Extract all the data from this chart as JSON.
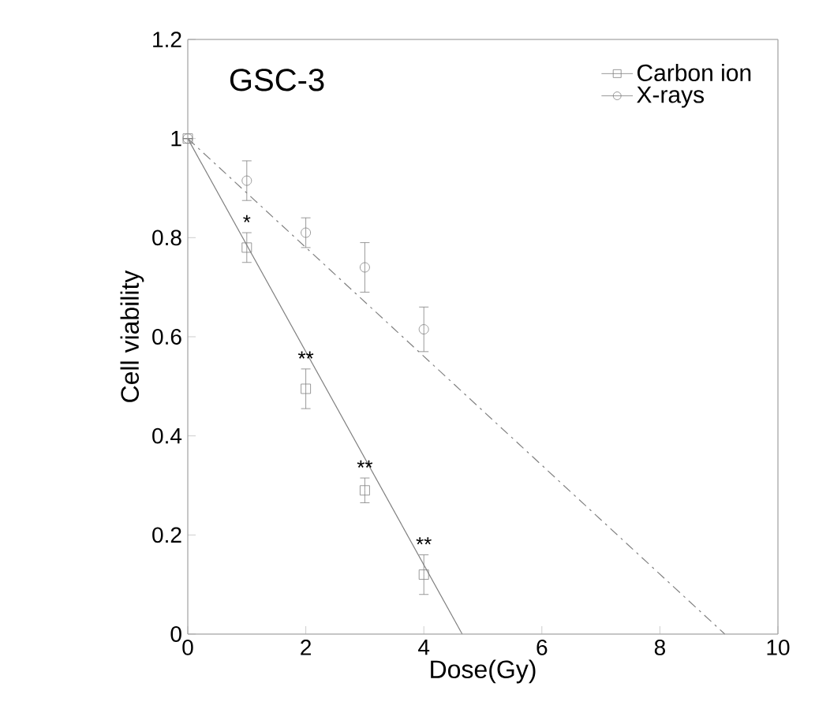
{
  "chart_data": {
    "type": "scatter",
    "title": "GSC-3",
    "xlabel": "Dose(Gy)",
    "ylabel": "Cell viability",
    "xlim": [
      0,
      10
    ],
    "xticks": [
      0,
      2,
      4,
      6,
      8,
      10
    ],
    "ylim": [
      0,
      1.2
    ],
    "yticks": [
      0,
      0.2,
      0.4,
      0.6,
      0.8,
      1,
      1.2
    ],
    "legend": "top right",
    "grid": false,
    "series": [
      {
        "name": "Carbon ion",
        "marker": "square",
        "color": "#808080",
        "x": [
          0,
          1,
          2,
          3,
          4
        ],
        "values": [
          1,
          0.78,
          0.495,
          0.29,
          0.12
        ],
        "errors": [
          null,
          0.03,
          0.04,
          0.025,
          0.04
        ]
      },
      {
        "name": "X-rays",
        "marker": "circle",
        "color": "#808080",
        "x": [
          0,
          1,
          2,
          3,
          4
        ],
        "values": [
          1,
          0.915,
          0.81,
          0.74,
          0.615
        ],
        "errors": [
          null,
          0.04,
          0.03,
          0.05,
          0.045
        ]
      },
      {
        "type": "line",
        "marker": "none",
        "line_style": "solid",
        "color": "#808080",
        "x": [
          0,
          4.65
        ],
        "values": [
          1,
          0
        ]
      },
      {
        "type": "line",
        "marker": "none",
        "line_style": "dashdot",
        "color": "#808080",
        "x": [
          0,
          9.1
        ],
        "values": [
          1,
          0
        ]
      }
    ],
    "annotations": [
      {
        "text": "*",
        "x": 1,
        "y": 0.78
      },
      {
        "text": "**",
        "x": 2,
        "y": 0.495
      },
      {
        "text": "**",
        "x": 3,
        "y": 0.29
      },
      {
        "text": "**",
        "x": 4,
        "y": 0.12
      }
    ]
  }
}
